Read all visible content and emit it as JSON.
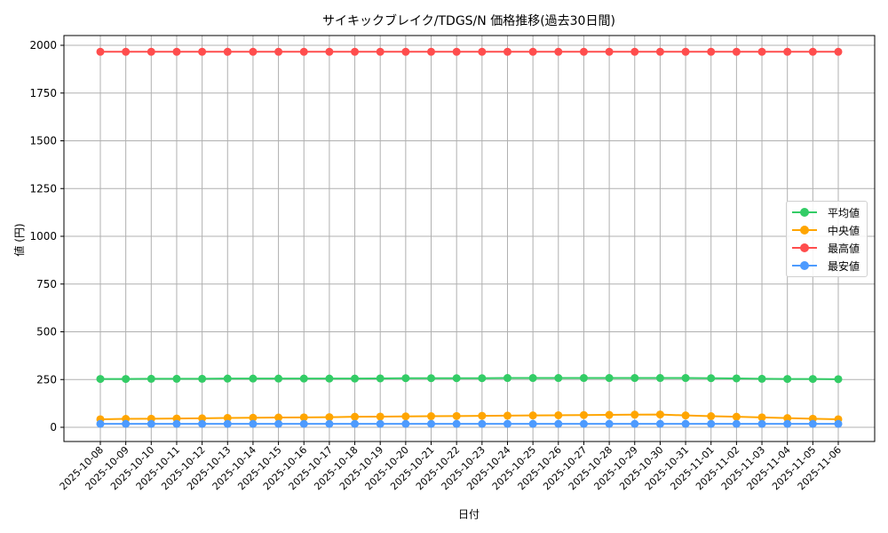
{
  "chart_data": {
    "type": "line",
    "title": "サイキックブレイク/TDGS/N 価格推移(過去30日間)",
    "xlabel": "日付",
    "ylabel": "値 (円)",
    "ylim": [
      -70,
      2060
    ],
    "yticks": [
      0,
      250,
      500,
      750,
      1000,
      1250,
      1500,
      1750,
      2000
    ],
    "grid": true,
    "legend_position": "center right",
    "x": [
      "2025-10-08",
      "2025-10-09",
      "2025-10-10",
      "2025-10-11",
      "2025-10-12",
      "2025-10-13",
      "2025-10-14",
      "2025-10-15",
      "2025-10-16",
      "2025-10-17",
      "2025-10-18",
      "2025-10-19",
      "2025-10-20",
      "2025-10-21",
      "2025-10-22",
      "2025-10-23",
      "2025-10-24",
      "2025-10-25",
      "2025-10-26",
      "2025-10-27",
      "2025-10-28",
      "2025-10-29",
      "2025-10-30",
      "2025-10-31",
      "2025-11-01",
      "2025-11-02",
      "2025-11-03",
      "2025-11-04",
      "2025-11-05",
      "2025-11-06"
    ],
    "series": [
      {
        "name": "平均値",
        "color": "#33cc66",
        "values": [
          253,
          253,
          254,
          254,
          254,
          255,
          255,
          255,
          255,
          255,
          255,
          256,
          257,
          257,
          257,
          257,
          258,
          258,
          258,
          258,
          258,
          258,
          258,
          258,
          257,
          256,
          254,
          253,
          253,
          252
        ]
      },
      {
        "name": "中央値",
        "color": "#ffa500",
        "values": [
          42,
          44,
          45,
          46,
          47,
          49,
          50,
          51,
          52,
          53,
          55,
          56,
          57,
          58,
          59,
          60,
          61,
          62,
          63,
          64,
          65,
          66,
          67,
          62,
          58,
          55,
          52,
          48,
          45,
          42
        ]
      },
      {
        "name": "最高値",
        "color": "#ff4d4d",
        "values": [
          1966,
          1966,
          1966,
          1966,
          1966,
          1966,
          1966,
          1966,
          1966,
          1966,
          1966,
          1966,
          1966,
          1966,
          1966,
          1966,
          1966,
          1966,
          1966,
          1966,
          1966,
          1966,
          1966,
          1966,
          1966,
          1966,
          1966,
          1966,
          1966,
          1966
        ]
      },
      {
        "name": "最安値",
        "color": "#4d9bff",
        "values": [
          18,
          18,
          18,
          18,
          18,
          18,
          18,
          18,
          18,
          18,
          18,
          18,
          18,
          18,
          18,
          18,
          18,
          18,
          18,
          18,
          18,
          18,
          18,
          18,
          18,
          18,
          18,
          18,
          18,
          18
        ]
      }
    ]
  }
}
